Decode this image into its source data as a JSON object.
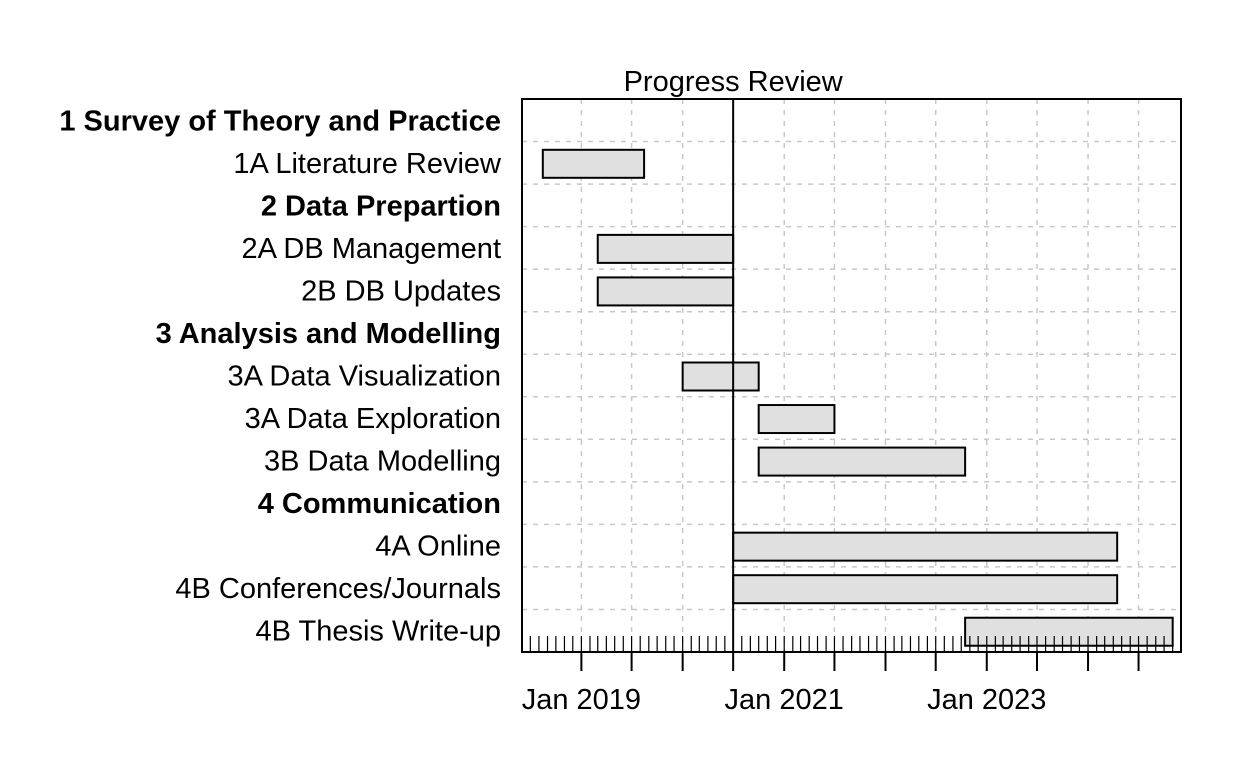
{
  "chart_data": {
    "type": "gantt",
    "title": "",
    "xlim": [
      "2018-06-01",
      "2024-12-01"
    ],
    "grid": true,
    "x_tick_labels": [
      {
        "date": "2019-01-01",
        "label": "Jan 2019"
      },
      {
        "date": "2021-01-01",
        "label": "Jan 2021"
      },
      {
        "date": "2023-01-01",
        "label": "Jan 2023"
      }
    ],
    "major_tick_dates": [
      "2019-01-01",
      "2019-07-01",
      "2020-01-01",
      "2020-07-01",
      "2021-01-01",
      "2021-07-01",
      "2022-01-01",
      "2022-07-01",
      "2023-01-01",
      "2023-07-01",
      "2024-01-01",
      "2024-07-01"
    ],
    "vertical_line": {
      "date": "2020-07-01",
      "label": "Progress Review"
    },
    "tasks": [
      {
        "label": "1 Survey of Theory and Practice",
        "group": true
      },
      {
        "label": "1A Literature Review",
        "group": false,
        "start": "2018-08-15",
        "end": "2019-08-15"
      },
      {
        "label": "2 Data Prepartion",
        "group": true
      },
      {
        "label": "2A DB Management",
        "group": false,
        "start": "2019-03-01",
        "end": "2020-07-01"
      },
      {
        "label": "2B DB Updates",
        "group": false,
        "start": "2019-03-01",
        "end": "2020-07-01"
      },
      {
        "label": "3 Analysis and Modelling",
        "group": true
      },
      {
        "label": "3A Data Visualization",
        "group": false,
        "start": "2020-01-01",
        "end": "2020-10-01"
      },
      {
        "label": "3A Data Exploration",
        "group": false,
        "start": "2020-10-01",
        "end": "2021-07-01"
      },
      {
        "label": "3B Data Modelling",
        "group": false,
        "start": "2020-10-01",
        "end": "2022-10-15"
      },
      {
        "label": "4 Communication",
        "group": true
      },
      {
        "label": "4A Online",
        "group": false,
        "start": "2020-07-01",
        "end": "2024-04-15"
      },
      {
        "label": "4B Conferences/Journals",
        "group": false,
        "start": "2020-07-01",
        "end": "2024-04-15"
      },
      {
        "label": "4B Thesis Write-up",
        "group": false,
        "start": "2022-10-15",
        "end": "2024-11-01"
      }
    ],
    "colors": {
      "bar_fill": "#e0e0e0",
      "bar_stroke": "#000000",
      "grid": "#c8c8c8",
      "axis": "#000000"
    }
  }
}
